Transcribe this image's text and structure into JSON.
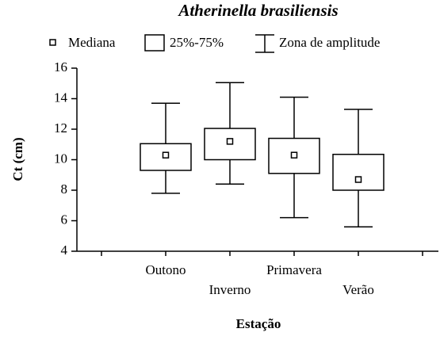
{
  "chart_data": {
    "type": "box",
    "title": "Atherinella brasiliensis",
    "x_label": "Estação",
    "y_label": "Ct (cm)",
    "legend": [
      "Mediana",
      "25%-75%",
      "Zona de amplitude"
    ],
    "categories": [
      "Outono",
      "Inverno",
      "Primavera",
      "Verão"
    ],
    "min": [
      7.8,
      8.4,
      6.2,
      5.6
    ],
    "q1": [
      9.3,
      10.0,
      9.1,
      8.0
    ],
    "median": [
      10.3,
      11.2,
      10.3,
      8.7
    ],
    "q3": [
      11.05,
      12.05,
      11.4,
      10.35
    ],
    "max": [
      13.7,
      15.05,
      14.1,
      13.3
    ],
    "color": "#000000",
    "ylim": [
      4,
      16
    ],
    "yticks": [
      4,
      6,
      8,
      10,
      12,
      14,
      16
    ]
  }
}
